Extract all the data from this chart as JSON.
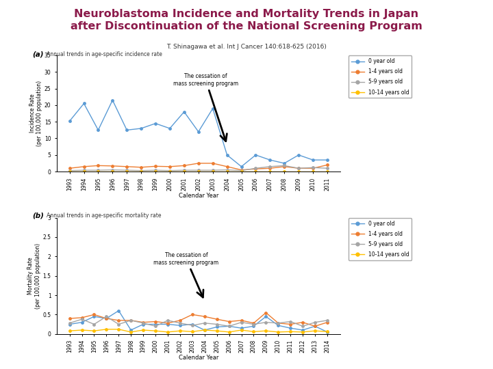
{
  "title": "Neuroblastoma Incidence and Mortality Trends in Japan\nafter Discontinuation of the National Screening Program",
  "subtitle": "T. Shinagawa et al. Int J Cancer 140:618-625 (2016)",
  "title_color": "#8B1A4A",
  "bg_color": "#FFFFFF",
  "panel_a_label": "(a)",
  "panel_a_subtitle": "Annual trends in age-specific incidence rate",
  "panel_a_ylabel": "Incidence Rate\n(per 100,000 population)",
  "panel_a_xlabel": "Calendar Year",
  "panel_a_ylim": [
    0,
    35
  ],
  "panel_a_yticks": [
    0,
    5,
    10,
    15,
    20,
    25,
    30,
    35
  ],
  "panel_a_years": [
    1993,
    1994,
    1995,
    1996,
    1997,
    1998,
    1999,
    2000,
    2001,
    2002,
    2003,
    2004,
    2005,
    2006,
    2007,
    2008,
    2009,
    2010,
    2011
  ],
  "panel_a_cessation_year": 2004,
  "panel_a_cessation_text": "The cessation of\nmass screening program",
  "panel_a_0yr": [
    15.2,
    20.5,
    12.5,
    21.5,
    12.5,
    13.0,
    14.5,
    13.0,
    18.0,
    12.0,
    19.0,
    5.0,
    1.5,
    5.0,
    3.5,
    2.5,
    5.0,
    3.5,
    3.5
  ],
  "panel_a_1_4yr": [
    1.0,
    1.5,
    1.8,
    1.7,
    1.5,
    1.3,
    1.6,
    1.5,
    1.8,
    2.5,
    2.5,
    1.5,
    0.5,
    0.8,
    1.0,
    1.5,
    1.0,
    1.0,
    2.0
  ],
  "panel_a_5_9yr": [
    0.3,
    0.4,
    0.4,
    0.5,
    0.4,
    0.3,
    0.4,
    0.3,
    0.4,
    0.4,
    0.4,
    0.5,
    0.3,
    1.0,
    1.5,
    1.8,
    1.0,
    1.2,
    1.0
  ],
  "panel_a_10_14yr": [
    0.1,
    0.1,
    0.1,
    0.1,
    0.1,
    0.1,
    0.1,
    0.1,
    0.1,
    0.1,
    0.1,
    0.1,
    0.1,
    0.1,
    0.1,
    0.1,
    0.1,
    0.1,
    0.1
  ],
  "panel_b_label": "(b)",
  "panel_b_subtitle": "Annual trends in age-specific mortality rate",
  "panel_b_ylabel": "Mortality Rate\n(per 100,000 population)",
  "panel_b_xlabel": "Calendar Year",
  "panel_b_ylim": [
    0,
    3
  ],
  "panel_b_yticks": [
    0,
    0.5,
    1,
    1.5,
    2,
    2.5,
    3
  ],
  "panel_b_years": [
    1993,
    1994,
    1995,
    1996,
    1997,
    1998,
    1999,
    2000,
    2001,
    2002,
    2003,
    2004,
    2005,
    2006,
    2007,
    2008,
    2009,
    2010,
    2011,
    2012,
    2013,
    2014
  ],
  "panel_b_cessation_year": 2004,
  "panel_b_cessation_text": "The cessation of\nmass screening program",
  "panel_b_0yr": [
    0.25,
    0.3,
    0.45,
    0.4,
    0.6,
    0.1,
    0.25,
    0.25,
    0.25,
    0.22,
    0.25,
    0.1,
    0.18,
    0.2,
    0.15,
    0.2,
    0.45,
    0.22,
    0.15,
    0.1,
    0.2,
    0.05
  ],
  "panel_b_1_4yr": [
    0.4,
    0.42,
    0.5,
    0.4,
    0.35,
    0.35,
    0.3,
    0.32,
    0.28,
    0.35,
    0.5,
    0.45,
    0.38,
    0.32,
    0.35,
    0.28,
    0.55,
    0.28,
    0.25,
    0.3,
    0.2,
    0.3
  ],
  "panel_b_5_9yr": [
    0.28,
    0.38,
    0.25,
    0.45,
    0.25,
    0.35,
    0.28,
    0.2,
    0.35,
    0.28,
    0.22,
    0.28,
    0.25,
    0.2,
    0.3,
    0.25,
    0.3,
    0.28,
    0.32,
    0.2,
    0.3,
    0.35
  ],
  "panel_b_10_14yr": [
    0.08,
    0.1,
    0.08,
    0.12,
    0.12,
    0.05,
    0.1,
    0.08,
    0.05,
    0.08,
    0.06,
    0.1,
    0.08,
    0.05,
    0.1,
    0.06,
    0.08,
    0.05,
    0.06,
    0.05,
    0.08,
    0.06
  ],
  "color_0yr": "#5B9BD5",
  "color_1_4yr": "#ED7D31",
  "color_5_9yr": "#A5A5A5",
  "color_10_14yr": "#FFC000",
  "legend_labels": [
    "0 year old",
    "1-4 years old",
    "5-9 years old",
    "10-14 years old"
  ]
}
